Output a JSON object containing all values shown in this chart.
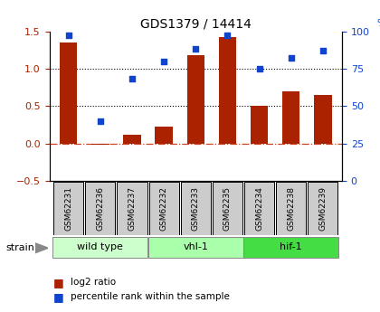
{
  "title": "GDS1379 / 14414",
  "samples": [
    "GSM62231",
    "GSM62236",
    "GSM62237",
    "GSM62232",
    "GSM62233",
    "GSM62235",
    "GSM62234",
    "GSM62238",
    "GSM62239"
  ],
  "log2_ratio": [
    1.35,
    -0.02,
    0.12,
    0.22,
    1.18,
    1.42,
    0.5,
    0.7,
    0.65
  ],
  "percentile_rank": [
    97,
    40,
    68,
    80,
    88,
    97,
    75,
    82,
    87
  ],
  "bar_color": "#aa2200",
  "scatter_color": "#1144cc",
  "ylim_left": [
    -0.5,
    1.5
  ],
  "ylim_right": [
    0,
    100
  ],
  "yticks_left": [
    -0.5,
    0.0,
    0.5,
    1.0,
    1.5
  ],
  "yticks_right": [
    0,
    25,
    50,
    75,
    100
  ],
  "groups": [
    {
      "label": "wild type",
      "start": 0,
      "end": 3,
      "color": "#ccffcc"
    },
    {
      "label": "vhl-1",
      "start": 3,
      "end": 6,
      "color": "#aaffaa"
    },
    {
      "label": "hif-1",
      "start": 6,
      "end": 9,
      "color": "#44dd44"
    }
  ],
  "strain_label": "strain",
  "legend_bar_label": "log2 ratio",
  "legend_scatter_label": "percentile rank within the sample",
  "hline_y": [
    0.5,
    1.0
  ],
  "zero_line_color": "#cc4422",
  "bg_color": "#ffffff"
}
